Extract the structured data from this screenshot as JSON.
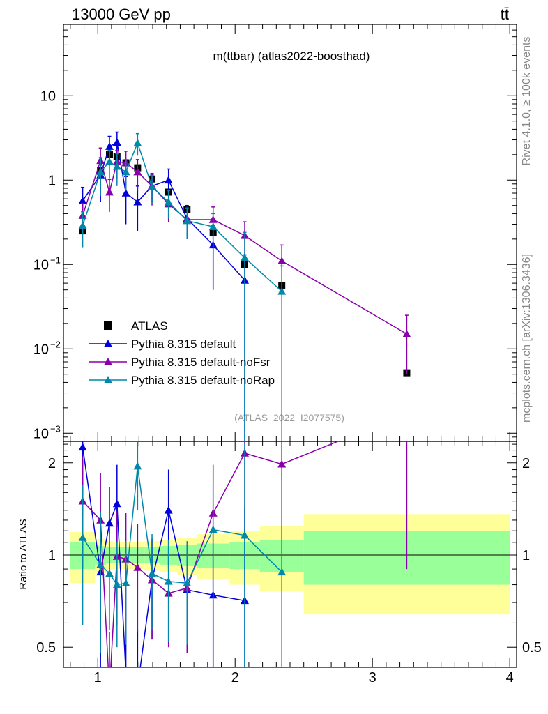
{
  "header": {
    "energy_label": "13000 GeV pp",
    "process_label": "tt̄",
    "plot_title": "m(ttbar) (atlas2022-boosthad)",
    "analysis_id": "(ATLAS_2022_I2077575)",
    "rivet_label": "Rivet 4.1.0, ≥ 100k events",
    "mcplots_label": "mcplots.cern.ch [arXiv:1306.3436]"
  },
  "colors": {
    "atlas": "#000000",
    "default": "#0000dd",
    "noFsr": "#8800aa",
    "noRap": "#0088aa",
    "band_inner": "#99ff99",
    "band_outer": "#ffff99"
  },
  "chart_data": {
    "type": "line",
    "title": "m(ttbar) (atlas2022-boosthad)",
    "xlabel": "",
    "ylabel_ratio": "Ratio to ATLAS",
    "xlim": [
      0.75,
      4.05
    ],
    "ylim_main": [
      0.0008,
      70
    ],
    "ylim_ratio": [
      0.43,
      2.35
    ],
    "xticks": [
      1,
      2,
      3,
      4
    ],
    "xtick_labels": [
      "1",
      "2",
      "3",
      "4"
    ],
    "yticks_main": [
      0.001,
      0.01,
      0.1,
      1,
      10
    ],
    "ytick_labels_main": [
      {
        "base": "10",
        "exp": "−3"
      },
      {
        "base": "10",
        "exp": "−2"
      },
      {
        "base": "10",
        "exp": "−1"
      },
      {
        "base": "1",
        "exp": ""
      },
      {
        "base": "10",
        "exp": ""
      }
    ],
    "yticks_ratio": [
      0.5,
      1,
      2
    ],
    "ytick_labels_ratio": [
      "0.5",
      "1",
      "2"
    ],
    "legend": {
      "position": "lower-left",
      "entries": [
        "ATLAS",
        "Pythia 8.315 default",
        "Pythia 8.315 default-noFsr",
        "Pythia 8.315 default-noRap"
      ]
    },
    "bins": [
      {
        "lo": 0.8,
        "hi": 0.98
      },
      {
        "lo": 0.98,
        "hi": 1.06
      },
      {
        "lo": 1.06,
        "hi": 1.11
      },
      {
        "lo": 1.11,
        "hi": 1.17
      },
      {
        "lo": 1.17,
        "hi": 1.24
      },
      {
        "lo": 1.24,
        "hi": 1.34
      },
      {
        "lo": 1.34,
        "hi": 1.45
      },
      {
        "lo": 1.45,
        "hi": 1.58
      },
      {
        "lo": 1.58,
        "hi": 1.72
      },
      {
        "lo": 1.72,
        "hi": 1.96
      },
      {
        "lo": 1.96,
        "hi": 2.18
      },
      {
        "lo": 2.18,
        "hi": 2.5
      },
      {
        "lo": 2.5,
        "hi": 4.0
      }
    ],
    "band_inner": [
      0.1,
      0.07,
      0.06,
      0.06,
      0.06,
      0.06,
      0.06,
      0.07,
      0.08,
      0.09,
      0.1,
      0.12,
      0.2
    ],
    "band_outer": [
      0.19,
      0.13,
      0.11,
      0.1,
      0.1,
      0.1,
      0.11,
      0.12,
      0.14,
      0.17,
      0.2,
      0.24,
      0.36
    ],
    "series": [
      {
        "name": "ATLAS",
        "style": "square",
        "x": [
          0.89,
          1.02,
          1.085,
          1.14,
          1.205,
          1.29,
          1.395,
          1.515,
          1.65,
          1.84,
          2.07,
          2.34,
          3.25
        ],
        "y": [
          0.25,
          1.3,
          2.0,
          1.9,
          1.6,
          1.4,
          1.03,
          0.72,
          0.45,
          0.24,
          0.1,
          0.056,
          0.0052
        ],
        "ratio": [],
        "ratio_err": []
      },
      {
        "name": "Pythia 8.315 default",
        "color_key": "default",
        "x": [
          0.89,
          1.02,
          1.085,
          1.14,
          1.205,
          1.29,
          1.395,
          1.515,
          1.65,
          1.84,
          2.07
        ],
        "y": [
          0.57,
          1.15,
          2.5,
          2.8,
          0.7,
          0.55,
          0.85,
          1.0,
          0.35,
          0.17,
          0.065
        ],
        "yerr": [
          0.25,
          0.6,
          0.8,
          0.9,
          0.4,
          0.3,
          0.3,
          0.35,
          0.15,
          0.12,
          0.065
        ],
        "ratio": [
          2.25,
          0.88,
          1.27,
          1.47,
          0.41,
          0.37,
          0.83,
          1.4,
          0.77,
          0.74,
          0.71
        ],
        "ratio_err": [
          0.9,
          0.45,
          0.4,
          0.5,
          0.25,
          0.2,
          0.3,
          0.5,
          0.25,
          0.5,
          0.71
        ]
      },
      {
        "name": "Pythia 8.315 default-noFsr",
        "color_key": "noFsr",
        "x": [
          0.89,
          1.02,
          1.085,
          1.14,
          1.205,
          1.29,
          1.395,
          1.515,
          1.65,
          1.84,
          2.07,
          2.34,
          3.25
        ],
        "y": [
          0.38,
          1.7,
          0.72,
          1.65,
          1.6,
          1.25,
          0.85,
          0.52,
          0.34,
          0.34,
          0.22,
          0.11,
          0.015
        ],
        "yerr": [
          0.15,
          0.7,
          0.3,
          0.6,
          0.6,
          0.5,
          0.35,
          0.2,
          0.13,
          0.14,
          0.1,
          0.06,
          0.01
        ],
        "ratio": [
          1.5,
          1.3,
          0.36,
          0.99,
          0.97,
          0.91,
          0.83,
          0.75,
          0.78,
          1.37,
          2.15,
          1.98,
          2.9
        ],
        "ratio_err": [
          0.6,
          0.55,
          0.2,
          0.4,
          0.4,
          0.35,
          0.3,
          0.25,
          0.3,
          0.6,
          1.0,
          1.1,
          2.0
        ]
      },
      {
        "name": "Pythia 8.315 default-noRap",
        "color_key": "noRap",
        "x": [
          0.89,
          1.02,
          1.085,
          1.14,
          1.205,
          1.29,
          1.395,
          1.515,
          1.65,
          1.84,
          2.07,
          2.34
        ],
        "y": [
          0.29,
          1.25,
          1.65,
          1.45,
          1.25,
          2.75,
          0.83,
          0.55,
          0.33,
          0.28,
          0.12,
          0.048
        ],
        "yerr": [
          0.13,
          0.6,
          0.6,
          0.6,
          0.5,
          0.8,
          0.3,
          0.2,
          0.13,
          0.12,
          0.12,
          0.048
        ],
        "ratio": [
          1.14,
          0.93,
          0.87,
          0.8,
          0.81,
          1.95,
          0.87,
          0.82,
          0.81,
          1.21,
          1.16,
          0.88
        ],
        "ratio_err": [
          0.55,
          0.45,
          0.3,
          0.3,
          0.3,
          0.55,
          0.3,
          0.3,
          0.3,
          0.5,
          1.16,
          0.88
        ]
      }
    ]
  }
}
